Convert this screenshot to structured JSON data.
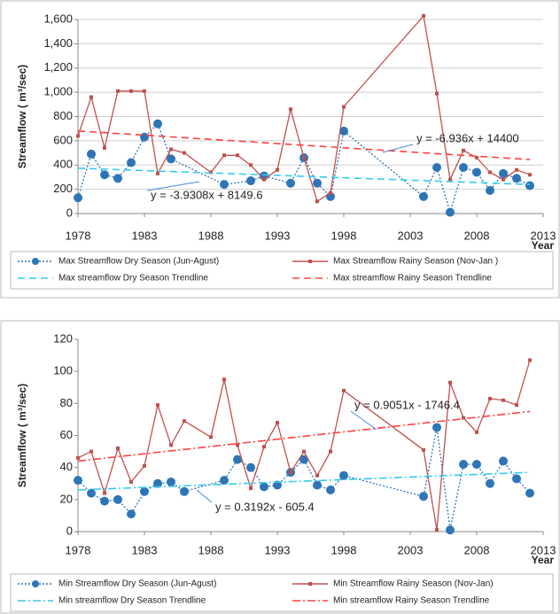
{
  "chart_data": [
    {
      "type": "line",
      "x_label": "Year",
      "y_label": "Streamflow ( m³/sec)",
      "xlim": [
        1978,
        2013
      ],
      "xticks": [
        1978,
        1983,
        1988,
        1993,
        1998,
        2003,
        2008,
        2013
      ],
      "ylim": [
        0,
        1600
      ],
      "yticks": [
        0,
        200,
        400,
        600,
        800,
        {
          "value": 1000,
          "label": "1,000"
        },
        {
          "value": 1200,
          "label": "1,200"
        },
        {
          "value": 1400,
          "label": "1,400"
        },
        {
          "value": 1600,
          "label": "1,600"
        }
      ],
      "grid": true,
      "series": [
        {
          "name": "Max Streamflow Dry Season (Jun-Agust)",
          "color": "#2e75b6",
          "line_style": "dotted",
          "marker": "circle",
          "x": [
            1978,
            1979,
            1980,
            1981,
            1982,
            1983,
            1984,
            1985,
            1989,
            1991,
            1992,
            1994,
            1995,
            1996,
            1997,
            1998,
            2004,
            2005,
            2006,
            2007,
            2008,
            2009,
            2010,
            2011,
            2012
          ],
          "values": [
            130,
            490,
            320,
            290,
            420,
            630,
            740,
            450,
            240,
            270,
            310,
            250,
            460,
            250,
            140,
            680,
            140,
            380,
            10,
            380,
            340,
            190,
            330,
            290,
            230
          ]
        },
        {
          "name": "Max Streamflow Rainy Season (Nov-Jan )",
          "color": "#c0504d",
          "line_style": "solid",
          "marker": "square",
          "x": [
            1978,
            1979,
            1980,
            1981,
            1982,
            1983,
            1984,
            1985,
            1986,
            1988,
            1989,
            1990,
            1991,
            1992,
            1993,
            1994,
            1995,
            1996,
            1997,
            1998,
            2004,
            2005,
            2006,
            2007,
            2008,
            2009,
            2010,
            2011,
            2012
          ],
          "values": [
            640,
            960,
            540,
            1010,
            1010,
            1010,
            330,
            530,
            500,
            340,
            480,
            480,
            400,
            280,
            360,
            860,
            460,
            100,
            170,
            880,
            1630,
            990,
            280,
            520,
            460,
            340,
            280,
            360,
            320
          ]
        },
        {
          "name": "Max streamflow Dry Season Trendline",
          "color": "#33ccee",
          "line_style": "dashed",
          "marker": "none",
          "x": [
            1978,
            2012
          ],
          "values": [
            374,
            240
          ]
        },
        {
          "name": "Max streamflow Rainy Season Trendline",
          "color": "#ff4040",
          "line_style": "dashed",
          "marker": "none",
          "x": [
            1978,
            2012
          ],
          "values": [
            681,
            445
          ]
        }
      ],
      "annotations": [
        "y = -6.936x + 14400",
        "y = -3.9308x + 8149.6"
      ]
    },
    {
      "type": "line",
      "x_label": "Year",
      "y_label": "Streamflow ( m³/sec)",
      "xlim": [
        1978,
        2013
      ],
      "xticks": [
        1978,
        1983,
        1988,
        1993,
        1998,
        2003,
        2008,
        2013
      ],
      "ylim": [
        0,
        120
      ],
      "yticks": [
        0,
        20,
        40,
        60,
        80,
        100,
        120
      ],
      "grid": false,
      "series": [
        {
          "name": "Min Streamflow Dry Season (Jun-Agust)",
          "color": "#2e75b6",
          "line_style": "dotted",
          "marker": "circle",
          "x": [
            1978,
            1979,
            1980,
            1981,
            1982,
            1983,
            1984,
            1985,
            1986,
            1989,
            1990,
            1991,
            1992,
            1993,
            1994,
            1995,
            1996,
            1997,
            1998,
            2004,
            2005,
            2006,
            2007,
            2008,
            2009,
            2010,
            2011,
            2012
          ],
          "values": [
            32,
            24,
            19,
            20,
            11,
            25,
            30,
            31,
            25,
            32,
            45,
            40,
            28,
            29,
            37,
            45,
            29,
            26,
            35,
            22,
            65,
            1,
            42,
            42,
            30,
            44,
            33,
            24
          ]
        },
        {
          "name": "Min Streamflow Rainy Season (Nov-Jan)",
          "color": "#c0504d",
          "line_style": "solid",
          "marker": "square",
          "x": [
            1978,
            1979,
            1980,
            1981,
            1982,
            1983,
            1984,
            1985,
            1986,
            1988,
            1989,
            1990,
            1991,
            1992,
            1993,
            1994,
            1995,
            1996,
            1997,
            1998,
            2004,
            2005,
            2006,
            2007,
            2008,
            2009,
            2010,
            2011,
            2012
          ],
          "values": [
            46,
            50,
            24,
            52,
            31,
            41,
            79,
            54,
            69,
            59,
            95,
            54,
            27,
            53,
            68,
            37,
            50,
            35,
            50,
            88,
            51,
            1,
            93,
            71,
            62,
            83,
            82,
            79,
            107
          ]
        },
        {
          "name": "Min streamflow Dry Season Trendline",
          "color": "#33ccee",
          "line_style": "dashdot",
          "marker": "none",
          "x": [
            1978,
            2012
          ],
          "values": [
            26,
            37
          ]
        },
        {
          "name": "Min streamflow Rainy Season Trendline",
          "color": "#ff4040",
          "line_style": "dashdot",
          "marker": "none",
          "x": [
            1978,
            2012
          ],
          "values": [
            44,
            75
          ]
        }
      ],
      "annotations": [
        "y = 0.9051x - 1746.4",
        "y = 0.3192x - 605.4"
      ]
    }
  ]
}
